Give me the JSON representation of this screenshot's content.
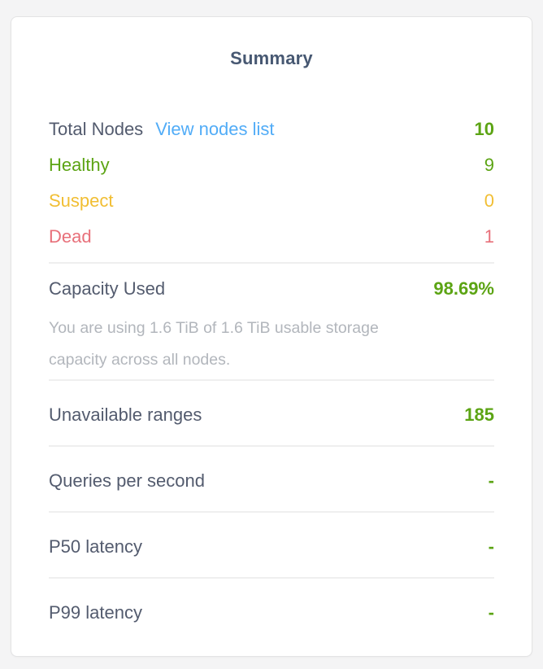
{
  "colors": {
    "green": "#5CA414",
    "yellow": "#F1BE33",
    "red": "#E8707A",
    "link_blue": "#51ACF7",
    "heading": "#475872",
    "label": "#535B6E",
    "muted_gray": "#B2B6BC",
    "card_background": "#FFFFFF",
    "page_background": "#F4F4F5"
  },
  "card": {
    "title": "Summary",
    "node_rows": [
      {
        "label": "Total Nodes",
        "link": "View nodes list",
        "value": "10"
      },
      {
        "label": "Healthy",
        "value": "9"
      },
      {
        "label": "Suspect",
        "value": "0"
      },
      {
        "label": "Dead",
        "value": "1"
      }
    ],
    "capacity": {
      "label": "Capacity Used",
      "value": "98.69%",
      "description_line1": "You are using 1.6 TiB of 1.6 TiB usable storage",
      "description_line2": "capacity across all nodes."
    },
    "metric_rows": [
      {
        "label": "Unavailable ranges",
        "value": "185"
      },
      {
        "label": "Queries per second",
        "value": "-"
      },
      {
        "label": "P50 latency",
        "value": "-"
      },
      {
        "label": "P99 latency",
        "value": "-"
      }
    ]
  }
}
